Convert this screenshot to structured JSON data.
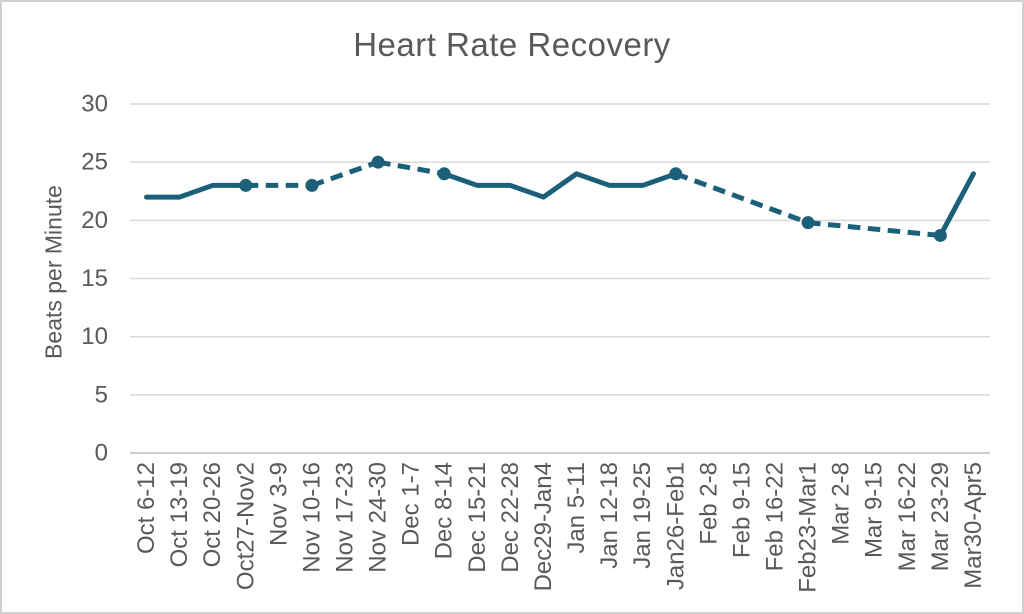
{
  "chart_data": {
    "type": "line",
    "title": "Heart Rate Recovery",
    "ylabel": "Beats per Minute",
    "xlabel": "",
    "ylim": [
      0,
      30
    ],
    "yticks": [
      0,
      5,
      10,
      15,
      20,
      25,
      30
    ],
    "grid": true,
    "legend": false,
    "categories": [
      "Oct 6-12",
      "Oct 13-19",
      "Oct 20-26",
      "Oct27-Nov2",
      "Nov 3-9",
      "Nov 10-16",
      "Nov 17-23",
      "Nov 24-30",
      "Dec 1-7",
      "Dec 8-14",
      "Dec 15-21",
      "Dec 22-28",
      "Dec29-Jan4",
      "Jan 5-11",
      "Jan 12-18",
      "Jan 19-25",
      "Jan26-Feb1",
      "Feb 2-8",
      "Feb 9-15",
      "Feb 16-22",
      "Feb23-Mar1",
      "Mar 2-8",
      "Mar 9-15",
      "Mar 16-22",
      "Mar 23-29",
      "Mar30-Apr5"
    ],
    "series": [
      {
        "name": "Heart Rate Recovery",
        "values": [
          22,
          22,
          23,
          23,
          null,
          23,
          null,
          25,
          null,
          24,
          23,
          23,
          22,
          24,
          23,
          23,
          24,
          null,
          null,
          null,
          19.8,
          null,
          null,
          null,
          18.7,
          24
        ],
        "gap_rendering": "dashed straight connector across missing weeks, circular markers at gap edges"
      }
    ],
    "colors": {
      "line": "#1B6078",
      "marker": "#1B6078",
      "gridline": "#D9D9D9",
      "axis_line": "#BFBFBF",
      "text": "#595959",
      "background": "#FFFFFF",
      "border": "#D0D0D0"
    }
  }
}
